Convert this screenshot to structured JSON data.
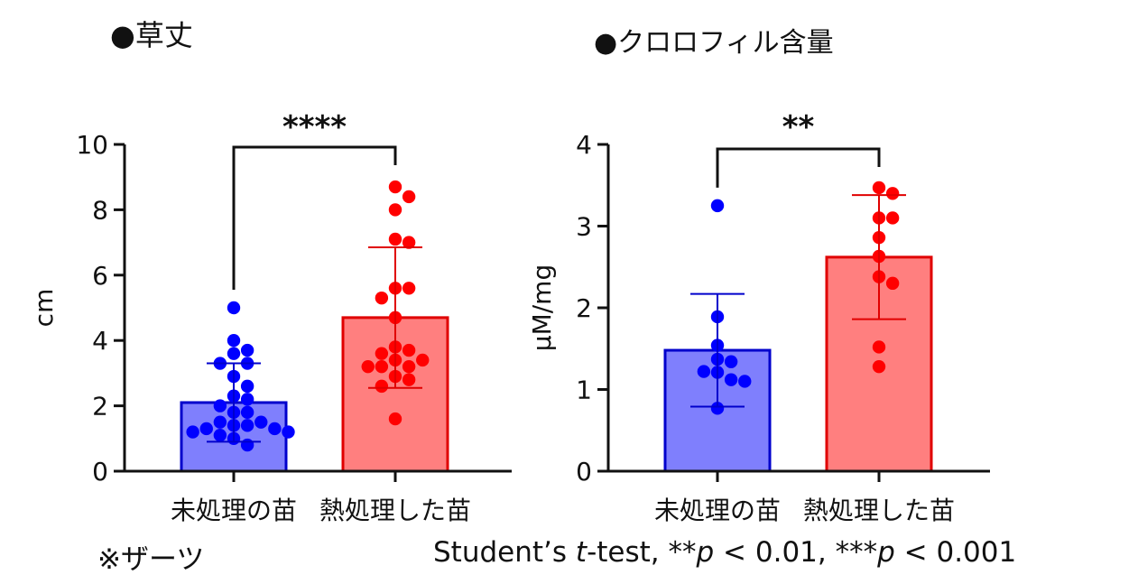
{
  "labels": {
    "title_height": "●草丈",
    "title_chloro": "●クロロフィル含量",
    "note": "※ザーツ",
    "stats": "Student’s t-test, **p < 0.01, ***p < 0.001"
  },
  "colors": {
    "control_fill": "#7f7ffd",
    "control_edge": "#0000cc",
    "control_point": "#0000ff",
    "treated_fill": "#ff7f7f",
    "treated_edge": "#e00000",
    "treated_point": "#ff0000"
  },
  "chart_data": [
    {
      "type": "bar",
      "title": "●草丈",
      "ylabel": "cm",
      "xlabel": "",
      "ylim": [
        0,
        10
      ],
      "yticks": [
        0,
        2,
        4,
        6,
        8,
        10
      ],
      "categories": [
        "未処理の苗",
        "熱処理した苗"
      ],
      "significance": "****",
      "grid": false,
      "series": [
        {
          "category": "未処理の苗",
          "mean": 2.1,
          "sd": 1.2,
          "points": [
            5.0,
            4.0,
            3.7,
            3.6,
            3.3,
            3.3,
            2.9,
            2.6,
            2.3,
            2.2,
            2.0,
            1.8,
            1.8,
            1.5,
            1.5,
            1.4,
            1.4,
            1.3,
            1.3,
            1.2,
            1.2,
            1.1,
            1.0,
            0.8
          ]
        },
        {
          "category": "熱処理した苗",
          "mean": 4.7,
          "sd": 2.15,
          "points": [
            8.7,
            8.4,
            8.0,
            7.1,
            7.0,
            5.6,
            5.6,
            5.3,
            4.7,
            3.8,
            3.7,
            3.6,
            3.4,
            3.4,
            3.2,
            3.2,
            3.2,
            2.9,
            2.8,
            2.6,
            1.6
          ]
        }
      ]
    },
    {
      "type": "bar",
      "title": "●クロロフィル含量",
      "ylabel": "μM/mg",
      "xlabel": "",
      "ylim": [
        0,
        4
      ],
      "yticks": [
        0,
        1,
        2,
        3,
        4
      ],
      "categories": [
        "未処理の苗",
        "熱処理した苗"
      ],
      "significance": "**",
      "grid": false,
      "series": [
        {
          "category": "未処理の苗",
          "mean": 1.48,
          "sd": 0.69,
          "points": [
            3.25,
            1.89,
            1.54,
            1.37,
            1.34,
            1.22,
            1.21,
            1.12,
            1.1,
            0.77
          ]
        },
        {
          "category": "熱処理した苗",
          "mean": 2.62,
          "sd": 0.76,
          "points": [
            3.47,
            3.4,
            3.1,
            3.1,
            2.86,
            2.63,
            2.38,
            2.3,
            1.52,
            1.28
          ]
        }
      ]
    }
  ]
}
